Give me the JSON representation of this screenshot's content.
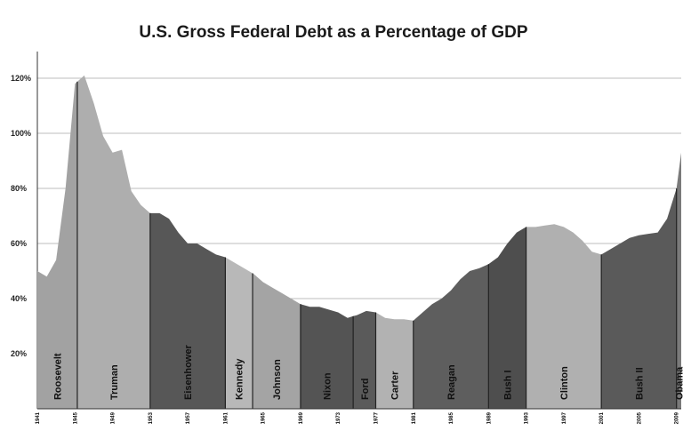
{
  "chart_data": {
    "type": "area",
    "title": "U.S. Gross Federal Debt as a Percentage of GDP",
    "xlabel": "",
    "ylabel": "",
    "xlim": [
      1941,
      2009.5
    ],
    "ylim": [
      0,
      120
    ],
    "grid": true,
    "yticks": [
      {
        "value": 20,
        "label": "20%"
      },
      {
        "value": 40,
        "label": "40%"
      },
      {
        "value": 60,
        "label": "60%"
      },
      {
        "value": 80,
        "label": "80%"
      },
      {
        "value": 100,
        "label": "100%"
      },
      {
        "value": 120,
        "label": "120%"
      }
    ],
    "xticks": [
      {
        "value": 1941,
        "label": "1941"
      },
      {
        "value": 1945,
        "label": "1945"
      },
      {
        "value": 1949,
        "label": "1949"
      },
      {
        "value": 1953,
        "label": "1953"
      },
      {
        "value": 1957,
        "label": "1957"
      },
      {
        "value": 1961,
        "label": "1961"
      },
      {
        "value": 1965,
        "label": "1965"
      },
      {
        "value": 1969,
        "label": "1969"
      },
      {
        "value": 1973,
        "label": "1973"
      },
      {
        "value": 1977,
        "label": "1977"
      },
      {
        "value": 1981,
        "label": "1981"
      },
      {
        "value": 1985,
        "label": "1985"
      },
      {
        "value": 1989,
        "label": "1989"
      },
      {
        "value": 1993,
        "label": "1993"
      },
      {
        "value": 1997,
        "label": "1997"
      },
      {
        "value": 2001,
        "label": "2001"
      },
      {
        "value": 2005,
        "label": "2005"
      },
      {
        "value": 2009,
        "label": "2009"
      }
    ],
    "x": [
      1941,
      1942,
      1943,
      1944,
      1945,
      1946,
      1947,
      1948,
      1949,
      1950,
      1951,
      1952,
      1953,
      1954,
      1955,
      1956,
      1957,
      1958,
      1959,
      1960,
      1961,
      1962,
      1963,
      1964,
      1965,
      1966,
      1967,
      1968,
      1969,
      1970,
      1971,
      1972,
      1973,
      1974,
      1975,
      1976,
      1977,
      1978,
      1979,
      1980,
      1981,
      1982,
      1983,
      1984,
      1985,
      1986,
      1987,
      1988,
      1989,
      1990,
      1991,
      1992,
      1993,
      1994,
      1995,
      1996,
      1997,
      1998,
      1999,
      2000,
      2001,
      2002,
      2003,
      2004,
      2005,
      2006,
      2007,
      2008,
      2009,
      2009.5
    ],
    "y": [
      50,
      48,
      54,
      80,
      118,
      121,
      111,
      99,
      93,
      94,
      79,
      74,
      71,
      71,
      69,
      64,
      60,
      60,
      58,
      56,
      55,
      53,
      51,
      49,
      46,
      44,
      42,
      40,
      38,
      37,
      37,
      36,
      35,
      33,
      34,
      35.5,
      35,
      33,
      32.5,
      32.5,
      32,
      35,
      38,
      40,
      43,
      47,
      50,
      51,
      52.5,
      55,
      60,
      64,
      66,
      66,
      66.5,
      67,
      66,
      64,
      61,
      57,
      56,
      58,
      60,
      62,
      63,
      63.5,
      64,
      69,
      80,
      93
    ],
    "eras": [
      {
        "name": "Roosevelt",
        "start": 1941,
        "end": 1945.25,
        "shade": "#a2a2a2"
      },
      {
        "name": "Truman",
        "start": 1945.25,
        "end": 1953,
        "shade": "#aeaeae"
      },
      {
        "name": "Eisenhower",
        "start": 1953,
        "end": 1961,
        "shade": "#575757"
      },
      {
        "name": "Kennedy",
        "start": 1961,
        "end": 1963.9,
        "shade": "#b8b8b8"
      },
      {
        "name": "Johnson",
        "start": 1963.9,
        "end": 1969,
        "shade": "#a4a4a4"
      },
      {
        "name": "Nixon",
        "start": 1969,
        "end": 1974.6,
        "shade": "#545454"
      },
      {
        "name": "Ford",
        "start": 1974.6,
        "end": 1977,
        "shade": "#5a5a5a"
      },
      {
        "name": "Carter",
        "start": 1977,
        "end": 1981,
        "shade": "#b2b2b2"
      },
      {
        "name": "Reagan",
        "start": 1981,
        "end": 1989,
        "shade": "#5e5e5e"
      },
      {
        "name": "Bush I",
        "start": 1989,
        "end": 1993,
        "shade": "#4e4e4e"
      },
      {
        "name": "Clinton",
        "start": 1993,
        "end": 2001,
        "shade": "#b0b0b0"
      },
      {
        "name": "Bush II",
        "start": 2001,
        "end": 2009,
        "shade": "#5a5a5a"
      },
      {
        "name": "Obama",
        "start": 2009,
        "end": 2009.5,
        "shade": "#7a7a7a"
      }
    ],
    "colors": {
      "gridline": "#bdbdbd",
      "divider": "#222222",
      "axis": "#333333"
    }
  }
}
